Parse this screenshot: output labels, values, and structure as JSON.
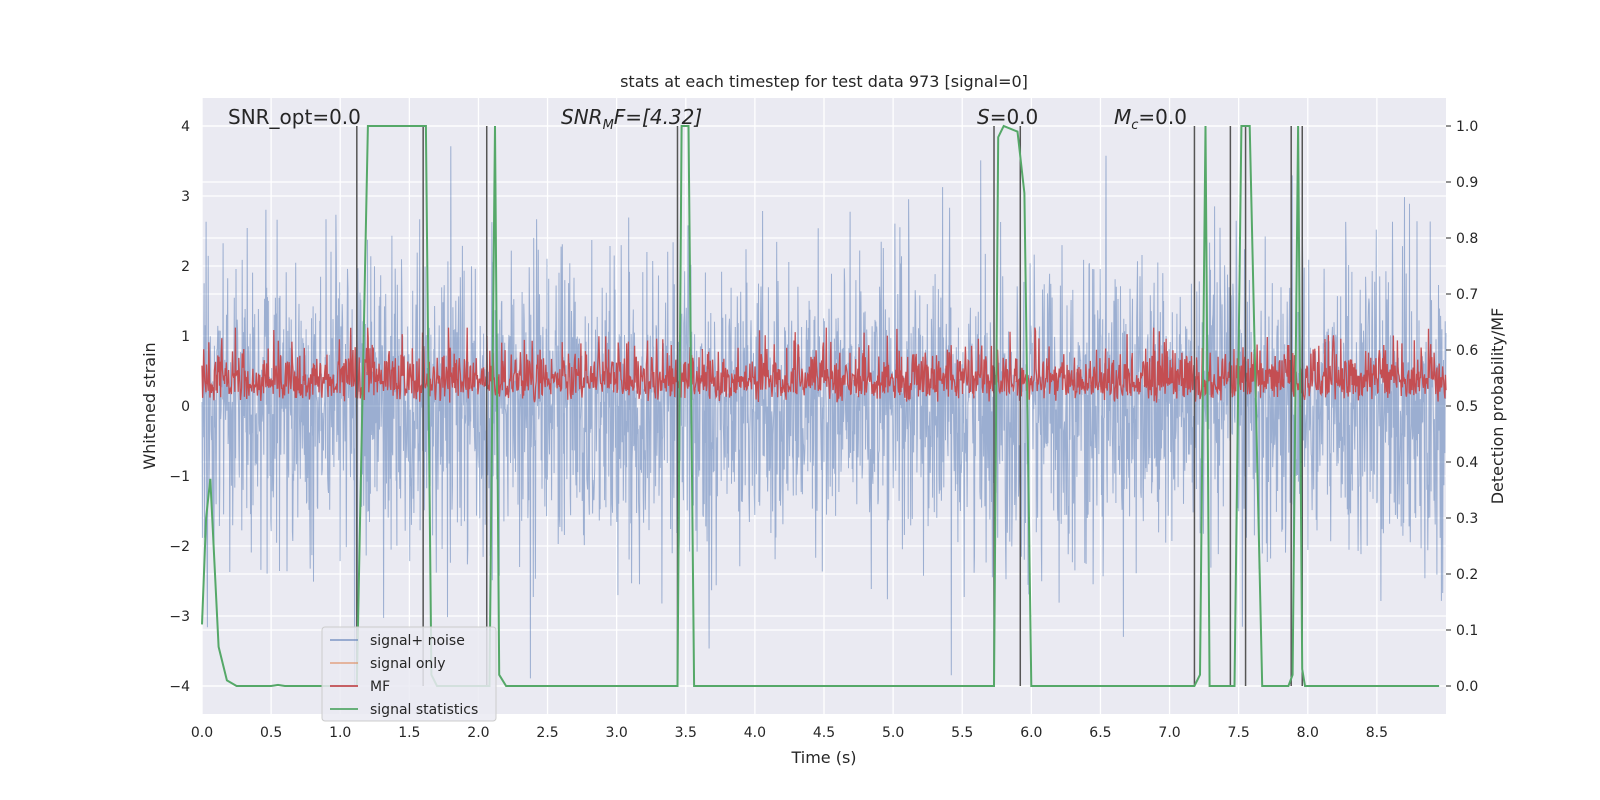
{
  "chart_data": {
    "type": "line",
    "title": "stats at each timestep for test data 973 [signal=0]",
    "xlabel": "Time (s)",
    "ylabel": "Whitened strain",
    "ylabel_right": "Detection probability/MF",
    "xlim": [
      0.0,
      9.0
    ],
    "ylim": [
      -4.4,
      4.4
    ],
    "ylim_right": [
      -0.05,
      1.05
    ],
    "x_ticks": [
      "0.0",
      "0.5",
      "1.0",
      "1.5",
      "2.0",
      "2.5",
      "3.0",
      "3.5",
      "4.0",
      "4.5",
      "5.0",
      "5.5",
      "6.0",
      "6.5",
      "7.0",
      "7.5",
      "8.0",
      "8.5"
    ],
    "y_ticks": [
      "−4",
      "−3",
      "−2",
      "−1",
      "0",
      "1",
      "2",
      "3",
      "4"
    ],
    "y_ticks_right": [
      "0.0",
      "0.1",
      "0.2",
      "0.3",
      "0.4",
      "0.5",
      "0.6",
      "0.7",
      "0.8",
      "0.9",
      "1.0"
    ],
    "grid": true,
    "legend_position": "lower-left",
    "annotations": {
      "snr_opt": "SNR_opt=0.0",
      "snr_mf_main": "SNR",
      "snr_mf_sub": "M",
      "snr_mf_rest": "F=[4.32]",
      "s_italic": "S",
      "s_rest": "=0.0",
      "mc_main": "M",
      "mc_sub": "c",
      "mc_rest": "=0.0"
    },
    "series": [
      {
        "name": "signal+ noise",
        "color": "#4c72b0",
        "axis": "left",
        "noise_std": 1.0
      },
      {
        "name": "signal only",
        "color": "#dd8452",
        "axis": "left",
        "values": []
      },
      {
        "name": "MF",
        "color": "#c44e52",
        "axis": "right",
        "baseline": 0.54,
        "range": [
          0.5,
          0.64
        ]
      },
      {
        "name": "signal statistics",
        "color": "#55a868",
        "axis": "right",
        "x": [
          0.0,
          0.03,
          0.06,
          0.12,
          0.18,
          0.25,
          0.5,
          0.55,
          0.6,
          1.0,
          1.09,
          1.12,
          1.16,
          1.2,
          1.6,
          1.62,
          1.66,
          1.7,
          2.05,
          2.08,
          2.12,
          2.15,
          2.2,
          3.44,
          3.47,
          3.52,
          3.56,
          3.6,
          5.73,
          5.76,
          5.8,
          5.9,
          5.95,
          6.0,
          6.07,
          6.1,
          7.18,
          7.22,
          7.26,
          7.29,
          7.44,
          7.47,
          7.52,
          7.56,
          7.58,
          7.67,
          7.86,
          7.89,
          7.93,
          7.96,
          7.98,
          8.05,
          8.1,
          8.95
        ],
        "values": [
          0.11,
          0.3,
          0.37,
          0.07,
          0.01,
          0.0,
          0.0,
          0.002,
          0.0,
          0.0,
          0.0,
          0.0,
          0.5,
          1.0,
          1.0,
          1.0,
          0.02,
          0.0,
          0.0,
          0.0,
          1.0,
          0.02,
          0.0,
          0.0,
          1.0,
          1.0,
          0.0,
          0.0,
          0.0,
          0.98,
          1.0,
          0.99,
          0.88,
          0.0,
          0.0,
          0.0,
          0.0,
          0.02,
          1.0,
          0.0,
          0.0,
          0.0,
          1.0,
          1.0,
          1.0,
          0.0,
          0.0,
          0.02,
          1.0,
          0.03,
          0.0,
          0.0,
          0.0,
          0.0
        ]
      }
    ],
    "vertical_lines": [
      1.12,
      1.6,
      2.06,
      3.44,
      5.73,
      5.92,
      7.18,
      7.44,
      7.55,
      7.88,
      7.96
    ]
  }
}
